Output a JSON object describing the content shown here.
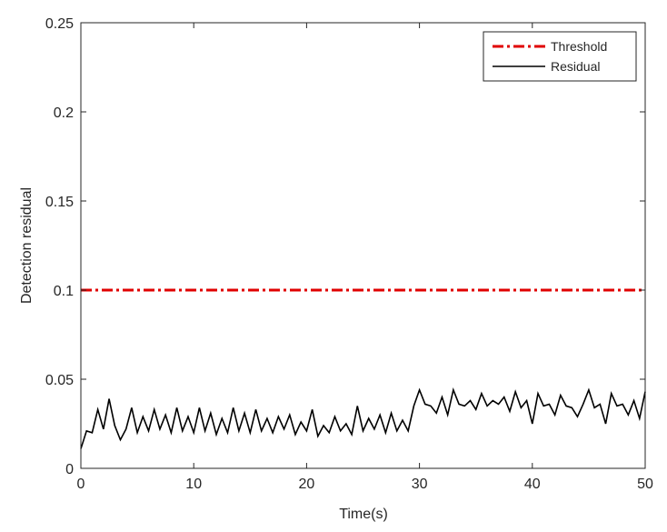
{
  "chart_data": {
    "type": "line",
    "xlabel": "Time(s)",
    "ylabel": "Detection residual",
    "xlim": [
      0,
      50
    ],
    "ylim": [
      0,
      0.25
    ],
    "xticks": [
      0,
      10,
      20,
      30,
      40,
      50
    ],
    "yticks": [
      0,
      0.05,
      0.1,
      0.15,
      0.2,
      0.25
    ],
    "legend": "northeast",
    "series": [
      {
        "name": "Threshold",
        "color": "#e00000",
        "style": "dashdot",
        "x": [
          0,
          50
        ],
        "values": [
          0.1,
          0.1
        ]
      },
      {
        "name": "Residual",
        "color": "#000000",
        "style": "solid",
        "x": [
          0,
          0.5,
          1,
          1.5,
          2,
          2.5,
          3,
          3.5,
          4,
          4.5,
          5,
          5.5,
          6,
          6.5,
          7,
          7.5,
          8,
          8.5,
          9,
          9.5,
          10,
          10.5,
          11,
          11.5,
          12,
          12.5,
          13,
          13.5,
          14,
          14.5,
          15,
          15.5,
          16,
          16.5,
          17,
          17.5,
          18,
          18.5,
          19,
          19.5,
          20,
          20.5,
          21,
          21.5,
          22,
          22.5,
          23,
          23.5,
          24,
          24.5,
          25,
          25.5,
          26,
          26.5,
          27,
          27.5,
          28,
          28.5,
          29,
          29.5,
          30,
          30.5,
          31,
          31.5,
          32,
          32.5,
          33,
          33.5,
          34,
          34.5,
          35,
          35.5,
          36,
          36.5,
          37,
          37.5,
          38,
          38.5,
          39,
          39.5,
          40,
          40.5,
          41,
          41.5,
          42,
          42.5,
          43,
          43.5,
          44,
          44.5,
          45,
          45.5,
          46,
          46.5,
          47,
          47.5,
          48,
          48.5,
          49,
          49.5,
          50
        ],
        "values": [
          0.011,
          0.021,
          0.02,
          0.033,
          0.022,
          0.039,
          0.024,
          0.016,
          0.022,
          0.034,
          0.02,
          0.029,
          0.021,
          0.033,
          0.022,
          0.03,
          0.02,
          0.034,
          0.021,
          0.029,
          0.02,
          0.034,
          0.021,
          0.031,
          0.019,
          0.028,
          0.02,
          0.034,
          0.021,
          0.031,
          0.02,
          0.033,
          0.021,
          0.028,
          0.02,
          0.029,
          0.022,
          0.03,
          0.019,
          0.026,
          0.021,
          0.033,
          0.018,
          0.024,
          0.02,
          0.029,
          0.021,
          0.025,
          0.019,
          0.035,
          0.021,
          0.028,
          0.022,
          0.03,
          0.02,
          0.031,
          0.021,
          0.027,
          0.021,
          0.035,
          0.044,
          0.036,
          0.035,
          0.031,
          0.04,
          0.03,
          0.044,
          0.036,
          0.035,
          0.038,
          0.033,
          0.042,
          0.035,
          0.038,
          0.036,
          0.04,
          0.032,
          0.043,
          0.034,
          0.038,
          0.025,
          0.042,
          0.035,
          0.036,
          0.03,
          0.041,
          0.035,
          0.034,
          0.029,
          0.036,
          0.044,
          0.034,
          0.036,
          0.025,
          0.042,
          0.035,
          0.036,
          0.03,
          0.038,
          0.028,
          0.043
        ]
      }
    ]
  }
}
